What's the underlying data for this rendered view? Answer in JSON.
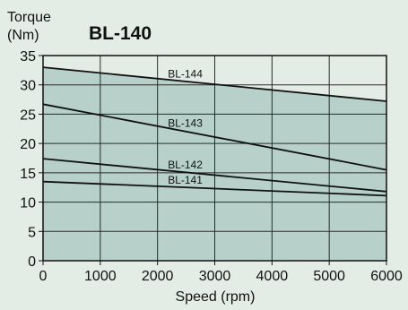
{
  "chart_data": {
    "type": "line",
    "title": "BL-140",
    "ylabel_line1": "Torque",
    "ylabel_line2": "(Nm)",
    "xlabel": "Speed (rpm)",
    "xlim": [
      0,
      6000
    ],
    "ylim": [
      0,
      35
    ],
    "xticks": [
      "0",
      "1000",
      "2000",
      "3000",
      "4000",
      "5000",
      "6000"
    ],
    "xtick_values": [
      0,
      1000,
      2000,
      3000,
      4000,
      5000,
      6000
    ],
    "yticks": [
      "0",
      "5",
      "10",
      "15",
      "20",
      "25",
      "30",
      "35"
    ],
    "ytick_values": [
      0,
      5,
      10,
      15,
      20,
      25,
      30,
      35
    ],
    "grid": true,
    "fill_color": "#b7d0c9",
    "series": [
      {
        "name": "BL-144",
        "x": [
          0,
          6000
        ],
        "values": [
          33.0,
          27.2
        ]
      },
      {
        "name": "BL-143",
        "x": [
          0,
          6000
        ],
        "values": [
          26.7,
          15.5
        ]
      },
      {
        "name": "BL-142",
        "x": [
          0,
          6000
        ],
        "values": [
          17.4,
          11.8
        ]
      },
      {
        "name": "BL-141",
        "x": [
          0,
          6000
        ],
        "values": [
          13.5,
          11.1
        ]
      }
    ]
  }
}
